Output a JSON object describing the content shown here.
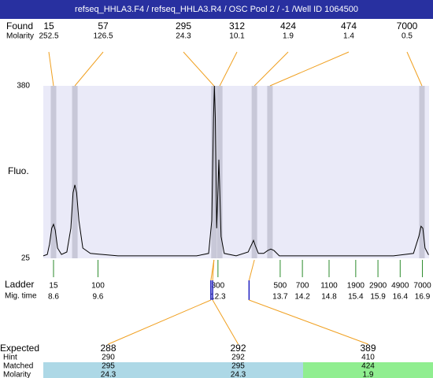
{
  "chart_data": {
    "type": "line",
    "title": "refseq_HHLA3.F4 / refseq_HHLA3.R4 / OSC Pool 2 / -1 /Well ID 1064500",
    "y_label": "Fluo.",
    "x": [
      8.37,
      8.46,
      8.51,
      8.56,
      8.6,
      8.64,
      8.69,
      8.78,
      8.9,
      8.99,
      9.04,
      9.08,
      9.12,
      9.17,
      9.26,
      9.43,
      10.05,
      10.94,
      11.82,
      12.09,
      12.16,
      12.2,
      12.22,
      12.24,
      12.27,
      12.3,
      12.32,
      12.34,
      12.37,
      12.44,
      12.71,
      12.98,
      13.06,
      13.1,
      13.14,
      13.21,
      13.33,
      13.42,
      13.49,
      13.56,
      13.68,
      14.48,
      15.37,
      16.25,
      16.7,
      16.82,
      16.87,
      16.91,
      16.96,
      17.04
    ],
    "values": [
      30,
      33,
      54,
      87,
      95,
      83,
      46,
      33,
      38,
      87,
      160,
      176,
      160,
      103,
      46,
      35,
      30,
      30,
      30,
      35,
      103,
      314,
      380,
      314,
      87,
      168,
      228,
      168,
      70,
      35,
      30,
      38,
      54,
      62,
      51,
      35,
      35,
      41,
      44,
      41,
      30,
      30,
      30,
      30,
      35,
      70,
      91,
      87,
      46,
      32
    ],
    "color": "#000000",
    "background": "#eaeaf8",
    "xlim": [
      8.37,
      17.05
    ],
    "ylim": [
      25,
      380
    ],
    "yticks": [
      25,
      380
    ]
  },
  "found": {
    "label": "Found",
    "sublabel": "Molarity",
    "peaks": [
      {
        "size": 15,
        "molarity": 252.5,
        "time": 8.6
      },
      {
        "size": 57,
        "molarity": 126.5,
        "time": 9.08
      },
      {
        "size": 295,
        "molarity": 24.3,
        "time": 12.21
      },
      {
        "size": 312,
        "molarity": 10.1,
        "time": 12.34
      },
      {
        "size": 424,
        "molarity": 1.9,
        "time": 13.12
      },
      {
        "size": 474,
        "molarity": 1.4,
        "time": 13.47
      },
      {
        "size": 7000,
        "molarity": 0.5,
        "time": 16.89
      }
    ]
  },
  "ladder": {
    "label": "Ladder",
    "sublabel": "Mig. time",
    "sizes": [
      15,
      100,
      300,
      500,
      700,
      1100,
      1900,
      2900,
      4900,
      7000
    ],
    "times": [
      8.6,
      9.6,
      12.3,
      13.7,
      14.2,
      14.8,
      15.4,
      15.9,
      16.4,
      16.9
    ]
  },
  "matching": {
    "labels": [
      "Expected",
      "Hint",
      "Matched",
      "Molarity"
    ],
    "columns": [
      {
        "expected": 288,
        "hint": 290,
        "matched": 295,
        "molarity": 24.3,
        "time": 12.14,
        "peak": 2,
        "color": "#add8e6"
      },
      {
        "expected": 292,
        "hint": 292,
        "matched": 295,
        "molarity": 24.3,
        "time": 12.18,
        "peak": 2,
        "color": "#add8e6"
      },
      {
        "expected": 389,
        "hint": 410,
        "matched": 424,
        "molarity": 1.9,
        "time": 13.0,
        "peak": 4,
        "color": "#90ee90"
      }
    ]
  }
}
